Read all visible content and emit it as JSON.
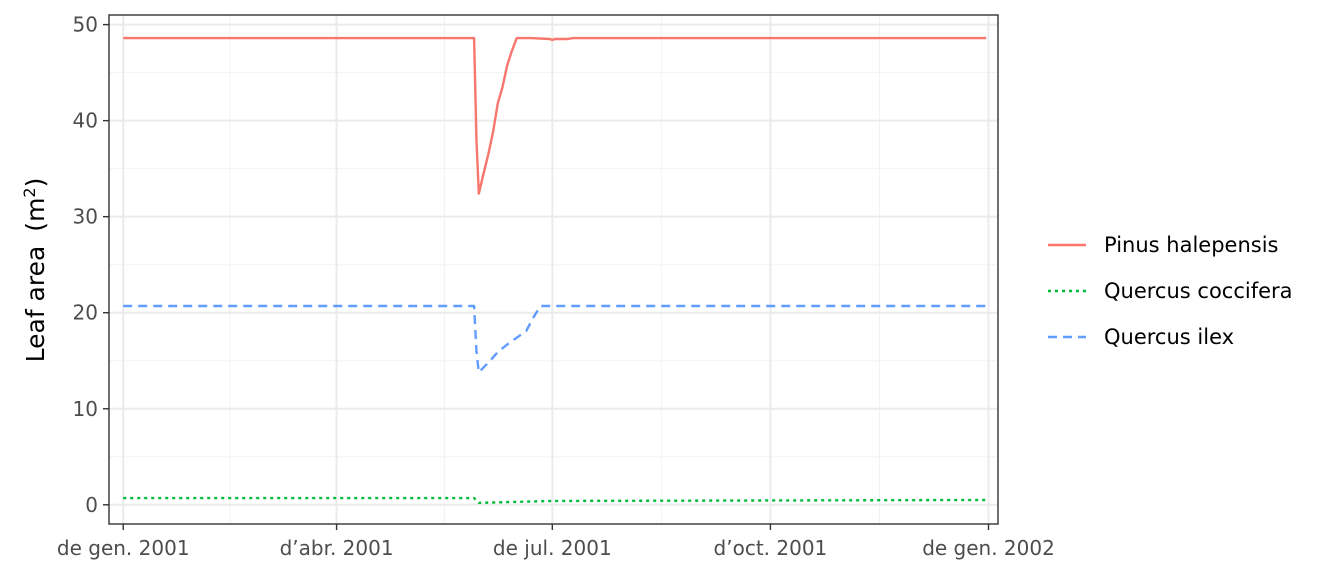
{
  "chart_data": {
    "type": "line",
    "ylabel": "Leaf area",
    "ylabel_unit_base": "(m",
    "ylabel_unit_exp": "2",
    "ylabel_unit_close": ")",
    "ylim": [
      -2,
      51
    ],
    "yticks": [
      0,
      10,
      20,
      30,
      40,
      50
    ],
    "xlim": [
      "2000-12-26",
      "2002-01-05"
    ],
    "xticks": [
      {
        "date": "2001-01-01",
        "label": "de gen. 2001"
      },
      {
        "date": "2001-04-01",
        "label": "d’abr. 2001"
      },
      {
        "date": "2001-07-01",
        "label": "de jul. 2001"
      },
      {
        "date": "2001-10-01",
        "label": "d’oct. 2001"
      },
      {
        "date": "2002-01-01",
        "label": "de gen. 2002"
      }
    ],
    "grid": true,
    "legend_position": "right",
    "series": [
      {
        "name": "Pinus halepensis",
        "color": "#F8766D",
        "dash": "solid",
        "x": [
          "2001-01-01",
          "2001-05-29",
          "2001-05-30",
          "2001-05-31",
          "2001-06-02",
          "2001-06-04",
          "2001-06-06",
          "2001-06-08",
          "2001-06-10",
          "2001-06-12",
          "2001-06-14",
          "2001-06-16",
          "2001-06-18",
          "2001-06-20",
          "2001-06-22",
          "2001-06-30",
          "2001-07-01",
          "2001-07-02",
          "2001-07-05",
          "2001-07-07",
          "2001-07-10",
          "2001-07-12",
          "2001-12-31"
        ],
        "y": [
          48.6,
          48.6,
          38.0,
          32.4,
          34.5,
          36.5,
          38.8,
          41.8,
          43.5,
          45.8,
          47.3,
          48.6,
          48.6,
          48.6,
          48.6,
          48.5,
          48.4,
          48.5,
          48.5,
          48.5,
          48.6,
          48.6,
          48.6
        ]
      },
      {
        "name": "Quercus coccifera",
        "color": "#00BA38",
        "dash": "dotted",
        "x": [
          "2001-01-01",
          "2001-05-29",
          "2001-05-31",
          "2001-06-15",
          "2001-07-01",
          "2001-12-31"
        ],
        "y": [
          0.7,
          0.7,
          0.2,
          0.3,
          0.4,
          0.5
        ]
      },
      {
        "name": "Quercus ilex",
        "color": "#619CFF",
        "dash": "dashed",
        "x": [
          "2001-01-01",
          "2001-05-29",
          "2001-05-30",
          "2001-05-31",
          "2001-06-04",
          "2001-06-08",
          "2001-06-12",
          "2001-06-16",
          "2001-06-20",
          "2001-06-23",
          "2001-06-26",
          "2001-12-31"
        ],
        "y": [
          20.7,
          20.7,
          16.0,
          13.8,
          14.8,
          15.9,
          16.7,
          17.4,
          18.1,
          19.5,
          20.7,
          20.7
        ]
      }
    ]
  }
}
